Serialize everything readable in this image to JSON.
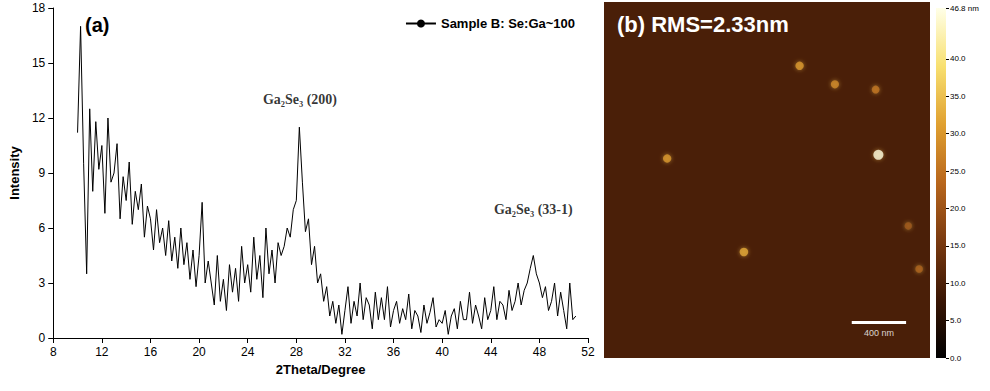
{
  "chart_data": [
    {
      "type": "line",
      "title": "(a)",
      "x_label": "2Theta/Degree",
      "y_label": "Intensity",
      "x": [
        10,
        10.25,
        10.5,
        10.75,
        11,
        11.25,
        11.5,
        11.75,
        12,
        12.25,
        12.5,
        12.75,
        13,
        13.25,
        13.5,
        13.75,
        14,
        14.25,
        14.5,
        14.75,
        15,
        15.25,
        15.5,
        15.75,
        16,
        16.25,
        16.5,
        16.75,
        17,
        17.25,
        17.5,
        17.75,
        18,
        18.25,
        18.5,
        18.75,
        19,
        19.25,
        19.5,
        19.75,
        20,
        20.25,
        20.5,
        20.75,
        21,
        21.25,
        21.5,
        21.75,
        22,
        22.25,
        22.5,
        22.75,
        23,
        23.25,
        23.5,
        23.75,
        24,
        24.25,
        24.5,
        24.75,
        25,
        25.25,
        25.5,
        25.75,
        26,
        26.25,
        26.5,
        26.75,
        27,
        27.25,
        27.5,
        27.75,
        28,
        28.25,
        28.5,
        28.75,
        29,
        29.25,
        29.5,
        29.75,
        30,
        30.25,
        30.5,
        30.75,
        31,
        31.25,
        31.5,
        31.75,
        32,
        32.25,
        32.5,
        32.75,
        33,
        33.25,
        33.5,
        33.75,
        34,
        34.25,
        34.5,
        34.75,
        35,
        35.25,
        35.5,
        35.75,
        36,
        36.25,
        36.5,
        36.75,
        37,
        37.25,
        37.5,
        37.75,
        38,
        38.25,
        38.5,
        38.75,
        39,
        39.25,
        39.5,
        39.75,
        40,
        40.25,
        40.5,
        40.75,
        41,
        41.25,
        41.5,
        41.75,
        42,
        42.25,
        42.5,
        42.75,
        43,
        43.25,
        43.5,
        43.75,
        44,
        44.25,
        44.5,
        44.75,
        45,
        45.25,
        45.5,
        45.75,
        46,
        46.25,
        46.5,
        46.75,
        47,
        47.25,
        47.5,
        47.75,
        48,
        48.25,
        48.5,
        48.75,
        49,
        49.25,
        49.5,
        49.75,
        50,
        50.25,
        50.5,
        50.75,
        51
      ],
      "series": [
        {
          "name": "Sample B: Se:Ga~100",
          "color": "#000000",
          "values": [
            11.2,
            17.0,
            9.5,
            3.5,
            12.5,
            8.0,
            11.8,
            9.2,
            10.5,
            6.8,
            12.0,
            8.5,
            9.0,
            10.6,
            6.5,
            8.8,
            7.5,
            9.6,
            6.2,
            8.0,
            7.0,
            8.4,
            5.5,
            7.2,
            6.5,
            4.8,
            7.0,
            5.2,
            6.0,
            4.5,
            6.4,
            4.2,
            5.5,
            3.8,
            6.0,
            4.0,
            5.2,
            3.2,
            4.8,
            2.8,
            4.5,
            7.4,
            3.0,
            4.2,
            3.0,
            1.8,
            4.5,
            2.0,
            3.2,
            1.5,
            4.0,
            2.5,
            3.8,
            2.0,
            5.0,
            3.0,
            4.0,
            2.5,
            5.5,
            3.2,
            4.5,
            2.2,
            6.0,
            3.5,
            4.8,
            3.0,
            5.2,
            4.5,
            5.0,
            6.0,
            5.5,
            7.0,
            7.5,
            11.5,
            8.5,
            5.8,
            6.5,
            4.0,
            5.0,
            3.0,
            3.5,
            2.0,
            2.8,
            1.2,
            2.0,
            0.8,
            1.8,
            0.2,
            1.5,
            2.8,
            0.8,
            2.0,
            1.2,
            3.0,
            1.0,
            2.2,
            1.8,
            0.5,
            2.5,
            1.0,
            2.2,
            1.0,
            2.8,
            0.6,
            1.5,
            2.0,
            0.8,
            1.6,
            1.0,
            2.4,
            0.5,
            1.5,
            1.2,
            0.3,
            1.8,
            0.8,
            1.4,
            2.2,
            0.6,
            1.0,
            0.8,
            1.5,
            0.2,
            1.2,
            1.6,
            0.5,
            2.0,
            1.0,
            1.0,
            2.5,
            0.8,
            1.8,
            1.2,
            0.5,
            2.2,
            1.0,
            1.5,
            2.8,
            1.0,
            2.0,
            1.8,
            1.0,
            2.6,
            1.5,
            2.0,
            3.0,
            1.8,
            2.6,
            3.0,
            3.8,
            4.5,
            3.5,
            3.0,
            2.2,
            2.8,
            1.5,
            2.0,
            3.0,
            1.2,
            2.5,
            1.5,
            0.5,
            3.0,
            1.0,
            1.2
          ]
        }
      ],
      "xlim": [
        8,
        52
      ],
      "xticks": [
        8,
        12,
        16,
        20,
        24,
        28,
        32,
        36,
        40,
        44,
        48,
        52
      ],
      "ylim": [
        0,
        18
      ],
      "yticks": [
        0,
        3,
        6,
        9,
        12,
        15,
        18
      ],
      "grid": false,
      "legend": "upper right",
      "annotations": [
        {
          "text": "Ga₂Se₃ (200)",
          "x": 28.3,
          "y": 13
        },
        {
          "text": "Ga₂Se₃ (33-1)",
          "x": 47.5,
          "y": 7
        }
      ]
    },
    {
      "type": "image",
      "title": "(b) RMS=2.33nm",
      "xlim": [
        0,
        2400
      ],
      "ylim": [
        0,
        2400
      ],
      "tick_labels": false,
      "particles": [
        {
          "x": 1440,
          "y": 1970,
          "height": 30
        },
        {
          "x": 1700,
          "y": 1845,
          "height": 28
        },
        {
          "x": 2000,
          "y": 1810,
          "height": 25
        },
        {
          "x": 465,
          "y": 1345,
          "height": 30
        },
        {
          "x": 2020,
          "y": 1370,
          "height": 46
        },
        {
          "x": 1030,
          "y": 715,
          "height": 32
        },
        {
          "x": 2320,
          "y": 600,
          "height": 22
        },
        {
          "x": 2240,
          "y": 890,
          "height": 20
        }
      ],
      "scale_bar": {
        "length": 400,
        "label": "400 nm"
      },
      "colorbar": {
        "range": [
          0,
          46.8
        ],
        "ticks": [
          {
            "value": 0,
            "label": "0.0"
          },
          {
            "value": 5,
            "label": "5.0"
          },
          {
            "value": 10,
            "label": "10.0"
          },
          {
            "value": 15,
            "label": "15.0"
          },
          {
            "value": 20,
            "label": "20.0"
          },
          {
            "value": 25,
            "label": "25.0"
          },
          {
            "value": 30,
            "label": "30.0"
          },
          {
            "value": 35,
            "label": "35.0"
          },
          {
            "value": 40,
            "label": "40.0"
          },
          {
            "value": 46.8,
            "label": "46.8 nm"
          }
        ]
      }
    }
  ]
}
